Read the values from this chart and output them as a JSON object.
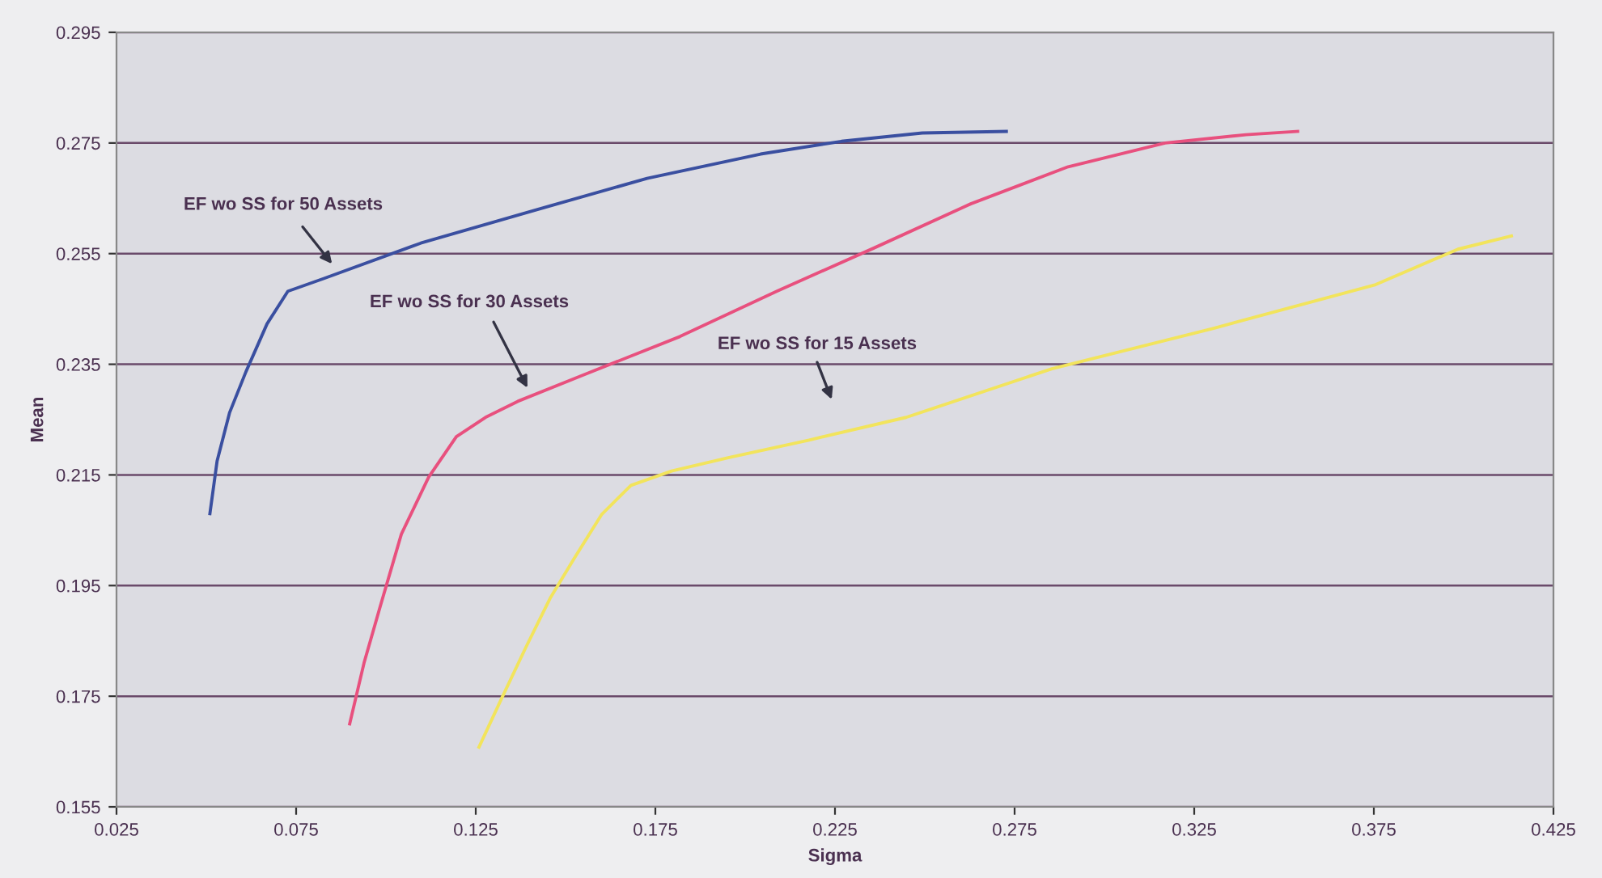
{
  "chart_data": {
    "type": "line",
    "xlabel": "Sigma",
    "ylabel": "Mean",
    "xlim": [
      0.025,
      0.425
    ],
    "xticks": [
      0.025,
      0.075,
      0.125,
      0.175,
      0.225,
      0.275,
      0.325,
      0.375,
      0.425
    ],
    "ylim": [
      0.155,
      0.295
    ],
    "yticks": [
      0.155,
      0.175,
      0.195,
      0.215,
      0.235,
      0.255,
      0.275,
      0.295
    ],
    "grid": "y",
    "legend": false,
    "marker": "none",
    "line_style": "solid",
    "series": [
      {
        "color": "#3a4fa0",
        "x": [
          0.051,
          0.053,
          0.0565,
          0.061,
          0.0669,
          0.0727,
          0.0827,
          0.1097,
          0.1412,
          0.1727,
          0.2043,
          0.2268,
          0.2493,
          0.2727
        ],
        "values": [
          0.208,
          0.2175,
          0.2263,
          0.2336,
          0.2423,
          0.2482,
          0.2505,
          0.2569,
          0.2628,
          0.2686,
          0.273,
          0.2753,
          0.2768,
          0.2771
        ]
      },
      {
        "color": "#e8507e",
        "x": [
          0.0899,
          0.0939,
          0.0984,
          0.1043,
          0.1119,
          0.1196,
          0.1277,
          0.1367,
          0.1547,
          0.1818,
          0.2088,
          0.2358,
          0.2628,
          0.2899,
          0.3169,
          0.3394,
          0.3538
        ],
        "values": [
          0.17,
          0.181,
          0.1912,
          0.2043,
          0.2146,
          0.2219,
          0.2254,
          0.2283,
          0.233,
          0.24,
          0.2482,
          0.256,
          0.264,
          0.2707,
          0.275,
          0.2765,
          0.2771
        ]
      },
      {
        "color": "#f2e45c",
        "x": [
          0.1259,
          0.1322,
          0.139,
          0.1457,
          0.1525,
          0.1601,
          0.1682,
          0.1795,
          0.1953,
          0.2178,
          0.2448,
          0.2854,
          0.3304,
          0.3755,
          0.3984,
          0.4133
        ],
        "values": [
          0.1658,
          0.1746,
          0.1839,
          0.1927,
          0.2,
          0.2079,
          0.2131,
          0.2157,
          0.2181,
          0.2213,
          0.2254,
          0.2342,
          0.2415,
          0.2494,
          0.2558,
          0.2582
        ]
      }
    ],
    "annotations": [
      "EF wo SS for 50 Assets",
      "EF wo SS for 30 Assets",
      "EF wo SS for 15 Assets"
    ]
  }
}
